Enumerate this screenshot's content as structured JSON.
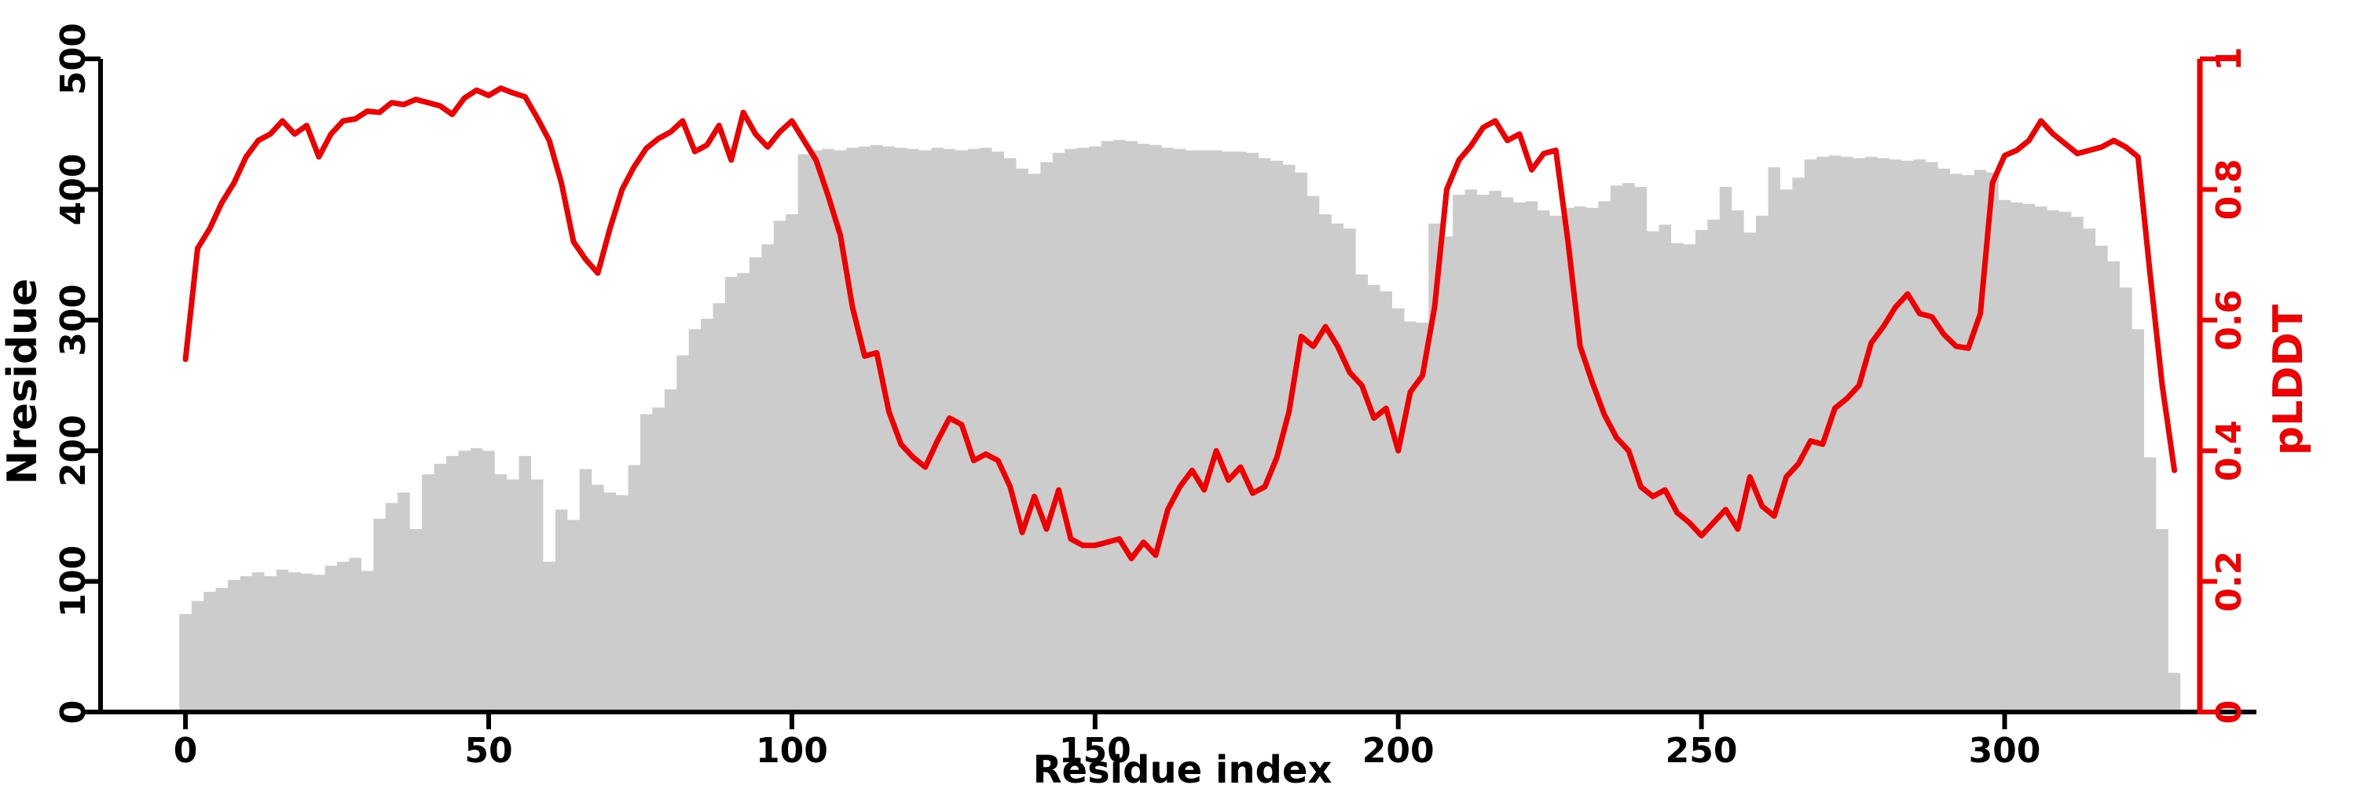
{
  "figure": {
    "background": "#ffffff",
    "bar_color": "#cccccc",
    "line_color": "#ee0000",
    "axis_color": "#000000"
  },
  "chart_data": {
    "type": "combo",
    "title": "",
    "grid": false,
    "legend": null,
    "x": {
      "start": 0,
      "step": 2,
      "count": 165
    },
    "x_axis": {
      "label": "Residue index",
      "range": [
        -14,
        332.2
      ],
      "ticks": [
        0,
        50,
        100,
        150,
        200,
        250,
        300
      ],
      "tick_labels": [
        "0",
        "50",
        "100",
        "150",
        "200",
        "250",
        "300"
      ]
    },
    "y_axis_left": {
      "label": "Nresidue",
      "color": "#000000",
      "range": [
        0,
        500
      ],
      "ticks": [
        0,
        100,
        200,
        300,
        400,
        500
      ],
      "tick_labels": [
        "0",
        "100",
        "200",
        "300",
        "400",
        "500"
      ]
    },
    "y_axis_right": {
      "label": "pLDDT",
      "color": "#ee0000",
      "range": [
        0,
        1
      ],
      "ticks": [
        0,
        0.2,
        0.4,
        0.6,
        0.8,
        1
      ],
      "tick_labels": [
        "0",
        "0.2",
        "0.4",
        "0.6",
        "0.8",
        "1"
      ]
    },
    "series": [
      {
        "name": "Nresidue",
        "type": "bar",
        "axis": "left",
        "color": "#cccccc",
        "values": [
          75,
          85,
          92,
          95,
          101,
          104,
          107,
          104,
          109,
          107,
          106,
          105,
          112,
          115,
          118,
          108,
          148,
          160,
          168,
          140,
          182,
          190,
          196,
          200,
          202,
          200,
          182,
          178,
          196,
          178,
          115,
          155,
          147,
          186,
          174,
          168,
          166,
          189,
          228,
          233,
          247,
          273,
          293,
          301,
          313,
          333,
          336,
          348,
          358,
          376,
          381,
          427,
          430,
          431,
          430,
          432,
          433,
          434,
          433,
          432,
          431,
          430,
          432,
          431,
          430,
          431,
          432,
          429,
          424,
          416,
          412,
          421,
          428,
          431,
          432,
          433,
          437,
          438,
          437,
          435,
          434,
          432,
          431,
          430,
          430,
          430,
          429,
          429,
          428,
          424,
          422,
          419,
          413,
          395,
          381,
          374,
          370,
          335,
          327,
          322,
          309,
          299,
          298,
          374,
          364,
          396,
          400,
          396,
          399,
          394,
          390,
          391,
          384,
          380,
          386,
          387,
          386,
          391,
          403,
          405,
          402,
          368,
          373,
          359,
          358,
          369,
          377,
          402,
          384,
          367,
          380,
          417,
          400,
          409,
          423,
          425,
          426,
          425,
          424,
          425,
          424,
          423,
          422,
          423,
          421,
          416,
          412,
          411,
          415,
          413,
          392,
          390,
          389,
          387,
          384,
          383,
          379,
          370,
          357,
          345,
          325,
          293,
          195,
          140,
          30
        ]
      },
      {
        "name": "pLDDT",
        "type": "line",
        "axis": "right",
        "color": "#ee0000",
        "values": [
          0.54,
          0.71,
          0.74,
          0.78,
          0.81,
          0.85,
          0.875,
          0.885,
          0.905,
          0.885,
          0.898,
          0.85,
          0.885,
          0.905,
          0.908,
          0.92,
          0.918,
          0.933,
          0.93,
          0.938,
          0.933,
          0.928,
          0.915,
          0.94,
          0.952,
          0.944,
          0.955,
          0.948,
          0.942,
          0.91,
          0.875,
          0.81,
          0.72,
          0.693,
          0.672,
          0.74,
          0.8,
          0.835,
          0.863,
          0.878,
          0.888,
          0.905,
          0.858,
          0.868,
          0.898,
          0.845,
          0.918,
          0.885,
          0.865,
          0.888,
          0.905,
          0.875,
          0.845,
          0.79,
          0.73,
          0.62,
          0.545,
          0.55,
          0.46,
          0.41,
          0.39,
          0.375,
          0.415,
          0.45,
          0.44,
          0.385,
          0.395,
          0.385,
          0.345,
          0.275,
          0.33,
          0.28,
          0.34,
          0.265,
          0.255,
          0.255,
          0.26,
          0.265,
          0.235,
          0.26,
          0.24,
          0.31,
          0.345,
          0.37,
          0.34,
          0.4,
          0.355,
          0.375,
          0.335,
          0.345,
          0.39,
          0.46,
          0.575,
          0.56,
          0.59,
          0.56,
          0.52,
          0.5,
          0.45,
          0.465,
          0.4,
          0.49,
          0.515,
          0.62,
          0.8,
          0.845,
          0.867,
          0.895,
          0.905,
          0.875,
          0.885,
          0.83,
          0.855,
          0.86,
          0.72,
          0.56,
          0.505,
          0.455,
          0.42,
          0.4,
          0.345,
          0.33,
          0.34,
          0.305,
          0.29,
          0.27,
          0.29,
          0.31,
          0.28,
          0.36,
          0.315,
          0.3,
          0.36,
          0.38,
          0.415,
          0.41,
          0.465,
          0.48,
          0.5,
          0.565,
          0.59,
          0.62,
          0.64,
          0.61,
          0.605,
          0.578,
          0.56,
          0.557,
          0.61,
          0.81,
          0.852,
          0.86,
          0.875,
          0.905,
          0.885,
          0.87,
          0.855,
          0.86,
          0.865,
          0.875,
          0.865,
          0.85,
          0.67,
          0.5,
          0.37
        ]
      }
    ]
  }
}
